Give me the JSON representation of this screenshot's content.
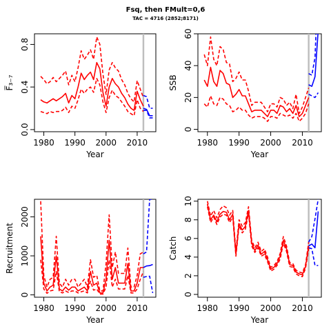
{
  "title": "Fsq, then FMult=0,6",
  "subtitle": "TAC = 4716 (2852;8171)",
  "colors": {
    "historic": "#ff0000",
    "projection": "#0000ff",
    "divider": "#bebebe",
    "axis": "#000000"
  },
  "chart_data": [
    {
      "id": "fbar",
      "type": "line",
      "xlabel": "Year",
      "ylabel": "F̅₃₋₇",
      "xlim": [
        1977,
        2016
      ],
      "ylim": [
        -0.02,
        0.9
      ],
      "xticks": [
        1980,
        1990,
        2000,
        2010
      ],
      "yticks": [
        0.0,
        0.4,
        0.8
      ],
      "ytick_labels": [
        "0.0",
        "0.4",
        "0.8"
      ],
      "divider_year": 2012,
      "historic": {
        "x": [
          1979,
          1980,
          1981,
          1982,
          1983,
          1984,
          1985,
          1986,
          1987,
          1988,
          1989,
          1990,
          1991,
          1992,
          1993,
          1994,
          1995,
          1996,
          1997,
          1998,
          1999,
          2000,
          2001,
          2002,
          2003,
          2004,
          2005,
          2006,
          2007,
          2008,
          2009,
          2010,
          2011,
          2012
        ],
        "median": [
          0.28,
          0.26,
          0.25,
          0.27,
          0.29,
          0.27,
          0.29,
          0.31,
          0.34,
          0.25,
          0.32,
          0.29,
          0.4,
          0.53,
          0.47,
          0.51,
          0.54,
          0.47,
          0.63,
          0.57,
          0.35,
          0.22,
          0.4,
          0.48,
          0.43,
          0.4,
          0.34,
          0.3,
          0.24,
          0.2,
          0.18,
          0.36,
          0.28,
          0.22
        ],
        "lower": [
          0.17,
          0.16,
          0.15,
          0.17,
          0.16,
          0.17,
          0.17,
          0.18,
          0.21,
          0.16,
          0.22,
          0.2,
          0.28,
          0.38,
          0.34,
          0.38,
          0.4,
          0.35,
          0.48,
          0.42,
          0.26,
          0.16,
          0.3,
          0.37,
          0.32,
          0.3,
          0.26,
          0.22,
          0.17,
          0.15,
          0.13,
          0.28,
          0.2,
          0.17
        ],
        "upper": [
          0.5,
          0.47,
          0.43,
          0.45,
          0.49,
          0.45,
          0.48,
          0.51,
          0.55,
          0.42,
          0.51,
          0.45,
          0.58,
          0.74,
          0.66,
          0.7,
          0.75,
          0.66,
          0.87,
          0.8,
          0.52,
          0.33,
          0.56,
          0.63,
          0.58,
          0.55,
          0.47,
          0.42,
          0.34,
          0.29,
          0.26,
          0.46,
          0.38,
          0.3
        ]
      },
      "projection": {
        "x": [
          2012,
          2013,
          2014,
          2015
        ],
        "median": [
          0.2,
          0.19,
          0.13,
          0.13
        ],
        "lower": [
          0.18,
          0.18,
          0.11,
          0.11
        ],
        "upper": [
          0.32,
          0.31,
          0.2,
          0.2
        ]
      }
    },
    {
      "id": "ssb",
      "type": "line",
      "xlabel": "Year",
      "ylabel": "SSB",
      "xlim": [
        1977,
        2016
      ],
      "ylim": [
        -1.5,
        60
      ],
      "xticks": [
        1980,
        1990,
        2000,
        2010
      ],
      "yticks": [
        0,
        20,
        40,
        60
      ],
      "ytick_labels": [
        "0",
        "20",
        "40",
        "60"
      ],
      "divider_year": 2012,
      "historic": {
        "x": [
          1979,
          1980,
          1981,
          1982,
          1983,
          1984,
          1985,
          1986,
          1987,
          1988,
          1989,
          1990,
          1991,
          1992,
          1993,
          1994,
          1995,
          1996,
          1997,
          1998,
          1999,
          2000,
          2001,
          2002,
          2003,
          2004,
          2005,
          2006,
          2007,
          2008,
          2009,
          2010,
          2011,
          2012
        ],
        "median": [
          31,
          27,
          39,
          30,
          27,
          37,
          35,
          29,
          28,
          20,
          22,
          25,
          21,
          21,
          16,
          11,
          12,
          12,
          12,
          10,
          8,
          12,
          12,
          10,
          15,
          14,
          11,
          13,
          10,
          15,
          8,
          10,
          15,
          20
        ],
        "lower": [
          16,
          14,
          21,
          16,
          15,
          20,
          19,
          16,
          15,
          11,
          12,
          14,
          12,
          12,
          9,
          7,
          8,
          8,
          8,
          7,
          5,
          8,
          8,
          7,
          10,
          9,
          8,
          9,
          7,
          10,
          5,
          7,
          10,
          16
        ],
        "upper": [
          47,
          40,
          58,
          44,
          40,
          52,
          50,
          42,
          41,
          30,
          32,
          36,
          31,
          31,
          24,
          15,
          17,
          17,
          17,
          14,
          11,
          16,
          16,
          14,
          20,
          19,
          15,
          17,
          13,
          22,
          10,
          14,
          20,
          26
        ]
      },
      "projection": {
        "x": [
          2012,
          2013,
          2014,
          2015
        ],
        "median": [
          28,
          27,
          33,
          62
        ],
        "lower": [
          22,
          21,
          20,
          23
        ],
        "upper": [
          35,
          34,
          45,
          95
        ]
      }
    },
    {
      "id": "recruitment",
      "type": "line",
      "xlabel": "Year",
      "ylabel": "Recruitment",
      "xlim": [
        1977,
        2016
      ],
      "ylim": [
        -60,
        2450
      ],
      "xticks": [
        1980,
        1990,
        2000,
        2010
      ],
      "yticks": [
        0,
        1000,
        2000
      ],
      "ytick_labels": [
        "0",
        "1000",
        "2000"
      ],
      "divider_year": 2012,
      "historic": {
        "x": [
          1979,
          1980,
          1981,
          1982,
          1983,
          1984,
          1985,
          1986,
          1987,
          1988,
          1989,
          1990,
          1991,
          1992,
          1993,
          1994,
          1995,
          1996,
          1997,
          1998,
          1999,
          2000,
          2001,
          2002,
          2003,
          2004,
          2005,
          2006,
          2007,
          2008,
          2009,
          2010,
          2011,
          2012
        ],
        "median": [
          1500,
          300,
          100,
          200,
          250,
          1000,
          150,
          100,
          200,
          120,
          200,
          200,
          100,
          150,
          200,
          100,
          600,
          250,
          300,
          50,
          50,
          400,
          1400,
          400,
          700,
          300,
          300,
          300,
          800,
          100,
          100,
          300,
          700,
          700
        ],
        "lower": [
          900,
          150,
          40,
          100,
          120,
          600,
          80,
          50,
          100,
          60,
          100,
          100,
          50,
          80,
          100,
          50,
          350,
          120,
          150,
          20,
          20,
          200,
          900,
          200,
          400,
          150,
          150,
          150,
          500,
          50,
          50,
          150,
          400,
          600
        ],
        "upper": [
          2400,
          500,
          200,
          400,
          450,
          1500,
          300,
          200,
          400,
          250,
          400,
          400,
          200,
          300,
          400,
          200,
          900,
          450,
          500,
          100,
          100,
          800,
          2050,
          700,
          1100,
          550,
          550,
          550,
          1200,
          200,
          200,
          500,
          1050,
          1100
        ]
      },
      "projection": {
        "x": [
          2012,
          2013,
          2014,
          2015
        ],
        "median": [
          700,
          740,
          750,
          780
        ],
        "lower": [
          450,
          470,
          480,
          50
        ],
        "upper": [
          1050,
          1100,
          2450,
          2450
        ]
      }
    },
    {
      "id": "catch",
      "type": "line",
      "xlabel": "Year",
      "ylabel": "Catch",
      "xlim": [
        1977,
        2016
      ],
      "ylim": [
        -0.3,
        10.2
      ],
      "xticks": [
        1980,
        1990,
        2000,
        2010
      ],
      "yticks": [
        0,
        2,
        4,
        6,
        8,
        10
      ],
      "ytick_labels": [
        "0",
        "2",
        "4",
        "6",
        "8",
        "10"
      ],
      "divider_year": 2012,
      "historic": {
        "x": [
          1980,
          1981,
          1982,
          1983,
          1984,
          1985,
          1986,
          1987,
          1988,
          1989,
          1990,
          1991,
          1992,
          1993,
          1994,
          1995,
          1996,
          1997,
          1998,
          1999,
          2000,
          2001,
          2002,
          2003,
          2004,
          2005,
          2006,
          2007,
          2008,
          2009,
          2010,
          2011,
          2012
        ],
        "median": [
          9.7,
          8.0,
          8.5,
          7.8,
          8.6,
          8.9,
          8.8,
          8.0,
          8.6,
          4.3,
          7.6,
          6.9,
          7.3,
          9.0,
          5.5,
          4.7,
          5.3,
          4.3,
          4.6,
          3.7,
          2.7,
          2.9,
          3.3,
          4.1,
          5.8,
          4.9,
          3.2,
          3.1,
          2.4,
          2.2,
          2.1,
          3.0,
          5.2
        ],
        "lower": [
          9.4,
          7.7,
          8.3,
          7.5,
          8.3,
          8.6,
          8.5,
          7.7,
          8.3,
          4.1,
          7.4,
          6.6,
          7.0,
          8.7,
          5.2,
          4.5,
          5.0,
          4.1,
          4.3,
          3.5,
          2.5,
          2.7,
          3.1,
          3.8,
          5.5,
          4.6,
          3.0,
          2.9,
          2.2,
          2.0,
          1.9,
          2.8,
          4.9
        ],
        "upper": [
          10.0,
          8.4,
          9.0,
          8.2,
          9.1,
          9.5,
          9.3,
          8.5,
          9.0,
          4.6,
          8.0,
          7.3,
          7.7,
          9.4,
          5.8,
          5.0,
          5.6,
          4.6,
          4.9,
          4.0,
          2.9,
          3.1,
          3.5,
          4.4,
          6.2,
          5.2,
          3.4,
          3.3,
          2.6,
          2.4,
          2.3,
          3.2,
          5.6
        ]
      },
      "projection": {
        "x": [
          2012,
          2013,
          2014,
          2015
        ],
        "median": [
          5.2,
          5.4,
          5.0,
          8.9
        ],
        "lower": [
          5.0,
          4.9,
          3.1,
          3.1
        ],
        "upper": [
          5.6,
          6.2,
          8.1,
          10.2
        ]
      }
    }
  ]
}
